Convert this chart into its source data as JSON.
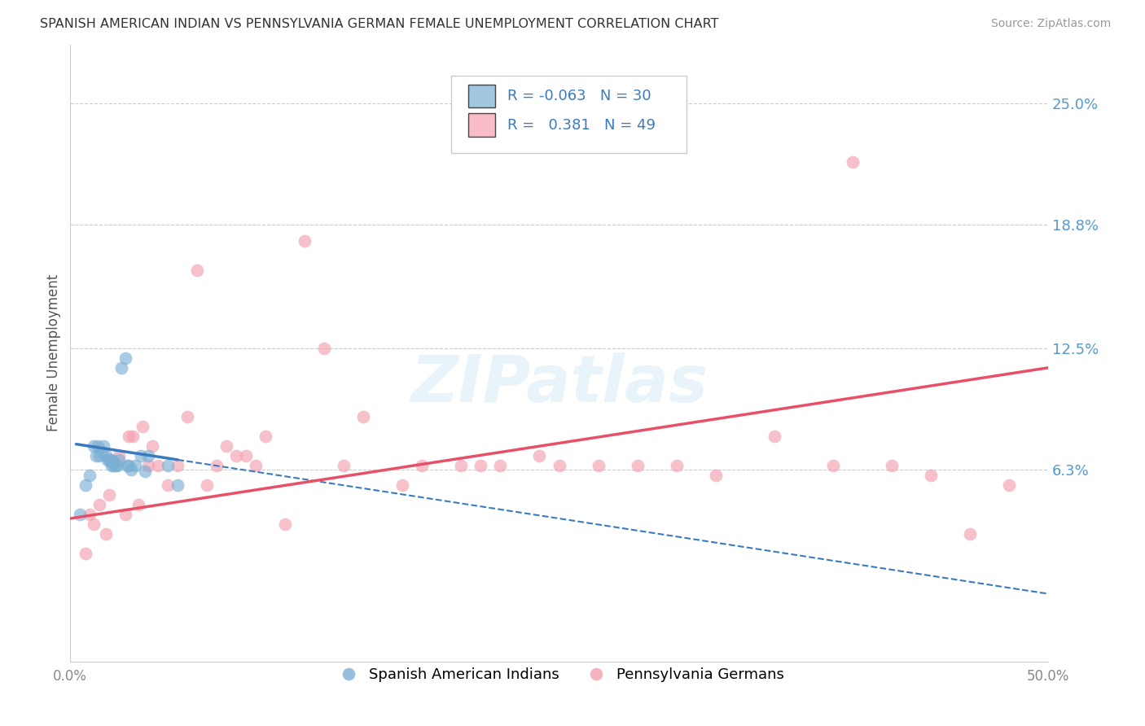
{
  "title": "SPANISH AMERICAN INDIAN VS PENNSYLVANIA GERMAN FEMALE UNEMPLOYMENT CORRELATION CHART",
  "source": "Source: ZipAtlas.com",
  "ylabel": "Female Unemployment",
  "y_tick_labels_right": [
    "25.0%",
    "18.8%",
    "12.5%",
    "6.3%"
  ],
  "y_tick_values_right": [
    0.25,
    0.188,
    0.125,
    0.063
  ],
  "xlim": [
    0.0,
    0.5
  ],
  "ylim": [
    -0.035,
    0.28
  ],
  "legend_blue_label": "Spanish American Indians",
  "legend_pink_label": "Pennsylvania Germans",
  "r_blue": "-0.063",
  "n_blue": "30",
  "r_pink": "0.381",
  "n_pink": "49",
  "blue_scatter_x": [
    0.005,
    0.008,
    0.01,
    0.012,
    0.013,
    0.014,
    0.015,
    0.016,
    0.017,
    0.018,
    0.019,
    0.02,
    0.021,
    0.021,
    0.022,
    0.022,
    0.023,
    0.024,
    0.025,
    0.026,
    0.028,
    0.029,
    0.03,
    0.031,
    0.033,
    0.036,
    0.038,
    0.04,
    0.05,
    0.055
  ],
  "blue_scatter_y": [
    0.04,
    0.055,
    0.06,
    0.075,
    0.07,
    0.075,
    0.07,
    0.072,
    0.075,
    0.07,
    0.068,
    0.068,
    0.065,
    0.068,
    0.067,
    0.065,
    0.065,
    0.065,
    0.068,
    0.115,
    0.12,
    0.065,
    0.065,
    0.063,
    0.065,
    0.07,
    0.062,
    0.07,
    0.065,
    0.055
  ],
  "pink_scatter_x": [
    0.008,
    0.01,
    0.012,
    0.015,
    0.018,
    0.02,
    0.025,
    0.028,
    0.03,
    0.032,
    0.035,
    0.037,
    0.04,
    0.042,
    0.045,
    0.05,
    0.055,
    0.06,
    0.065,
    0.07,
    0.075,
    0.08,
    0.085,
    0.09,
    0.095,
    0.1,
    0.11,
    0.12,
    0.13,
    0.14,
    0.15,
    0.17,
    0.18,
    0.2,
    0.21,
    0.22,
    0.24,
    0.25,
    0.27,
    0.29,
    0.31,
    0.33,
    0.36,
    0.39,
    0.4,
    0.42,
    0.44,
    0.46,
    0.48
  ],
  "pink_scatter_y": [
    0.02,
    0.04,
    0.035,
    0.045,
    0.03,
    0.05,
    0.07,
    0.04,
    0.08,
    0.08,
    0.045,
    0.085,
    0.065,
    0.075,
    0.065,
    0.055,
    0.065,
    0.09,
    0.165,
    0.055,
    0.065,
    0.075,
    0.07,
    0.07,
    0.065,
    0.08,
    0.035,
    0.18,
    0.125,
    0.065,
    0.09,
    0.055,
    0.065,
    0.065,
    0.065,
    0.065,
    0.07,
    0.065,
    0.065,
    0.065,
    0.065,
    0.06,
    0.08,
    0.065,
    0.22,
    0.065,
    0.06,
    0.03,
    0.055
  ],
  "background_color": "#ffffff",
  "plot_bg_color": "#ffffff",
  "grid_color": "#cccccc",
  "blue_color": "#7bafd4",
  "pink_color": "#f4a0b0",
  "blue_line_color": "#3a7bbf",
  "pink_line_color": "#e8506a",
  "watermark": "ZIPatlas",
  "right_label_color": "#5599cc",
  "legend_text_color": "#3a7bbf"
}
